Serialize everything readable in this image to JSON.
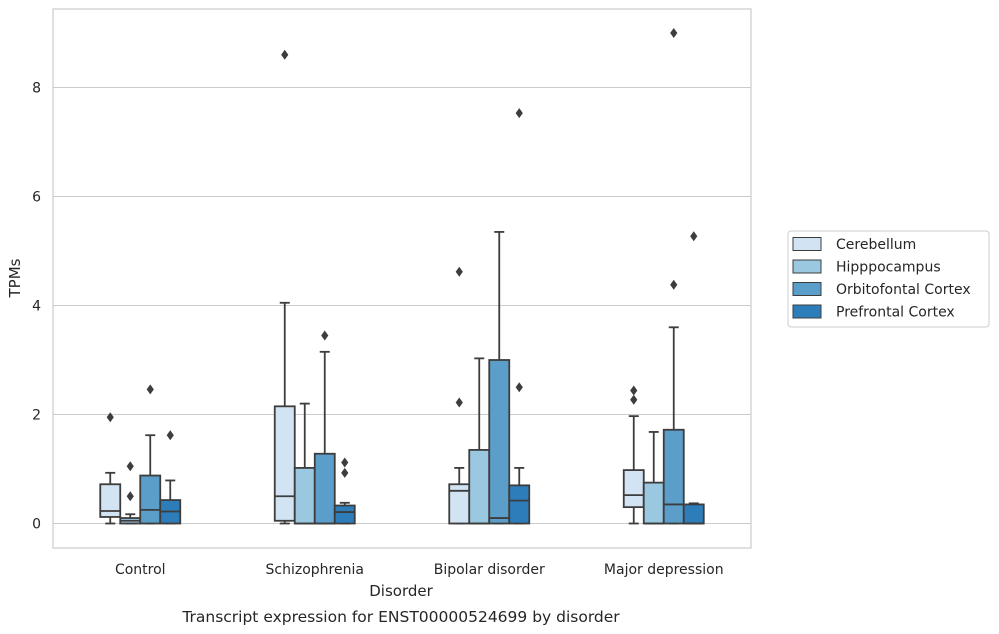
{
  "caption": "Transcript expression for ENST00000524699 by disorder",
  "chart_data": {
    "type": "box",
    "xlabel": "Disorder",
    "ylabel": "TPMs",
    "ylim": [
      -0.45,
      9.55
    ],
    "yticks": [
      0,
      2,
      4,
      6,
      8
    ],
    "grid": "horizontal",
    "legend_position": "right",
    "categories": [
      "Control",
      "Schizophrenia",
      "Bipolar disorder",
      "Major depression"
    ],
    "series": [
      {
        "name": "Cerebellum",
        "color": "#d2e3f3",
        "boxes": [
          {
            "whisker_low": 0.0,
            "q1": 0.12,
            "median": 0.23,
            "q3": 0.72,
            "whisker_high": 0.93,
            "outliers": [
              1.95
            ]
          },
          {
            "whisker_low": 0.0,
            "q1": 0.05,
            "median": 0.5,
            "q3": 2.15,
            "whisker_high": 4.05,
            "outliers": [
              8.6
            ]
          },
          {
            "whisker_low": 0.0,
            "q1": 0.0,
            "median": 0.6,
            "q3": 0.72,
            "whisker_high": 1.02,
            "outliers": [
              2.22,
              4.62
            ]
          },
          {
            "whisker_low": 0.0,
            "q1": 0.3,
            "median": 0.52,
            "q3": 0.98,
            "whisker_high": 1.97,
            "outliers": [
              2.27,
              2.44
            ]
          }
        ]
      },
      {
        "name": "Hipppocampus",
        "color": "#9ac8e0",
        "boxes": [
          {
            "whisker_low": 0.0,
            "q1": 0.0,
            "median": 0.05,
            "q3": 0.1,
            "whisker_high": 0.17,
            "outliers": [
              0.5,
              1.05
            ]
          },
          {
            "whisker_low": 0.0,
            "q1": 0.0,
            "median": 0.0,
            "q3": 1.02,
            "whisker_high": 2.2,
            "outliers": []
          },
          {
            "whisker_low": 0.0,
            "q1": 0.0,
            "median": 0.0,
            "q3": 1.35,
            "whisker_high": 3.03,
            "outliers": []
          },
          {
            "whisker_low": 0.0,
            "q1": 0.0,
            "median": 0.0,
            "q3": 0.75,
            "whisker_high": 1.68,
            "outliers": []
          }
        ]
      },
      {
        "name": "Orbitofontal Cortex",
        "color": "#5a9ec9",
        "boxes": [
          {
            "whisker_low": 0.0,
            "q1": 0.0,
            "median": 0.25,
            "q3": 0.88,
            "whisker_high": 1.62,
            "outliers": [
              2.46
            ]
          },
          {
            "whisker_low": 0.0,
            "q1": 0.0,
            "median": 0.0,
            "q3": 1.28,
            "whisker_high": 3.15,
            "outliers": [
              3.45
            ]
          },
          {
            "whisker_low": 0.0,
            "q1": 0.0,
            "median": 0.1,
            "q3": 3.0,
            "whisker_high": 5.35,
            "outliers": []
          },
          {
            "whisker_low": 0.0,
            "q1": 0.0,
            "median": 0.35,
            "q3": 1.72,
            "whisker_high": 3.6,
            "outliers": [
              4.38,
              9.0
            ]
          }
        ]
      },
      {
        "name": "Prefrontal Cortex",
        "color": "#2d7dbb",
        "boxes": [
          {
            "whisker_low": 0.0,
            "q1": 0.0,
            "median": 0.22,
            "q3": 0.43,
            "whisker_high": 0.79,
            "outliers": [
              1.62
            ]
          },
          {
            "whisker_low": 0.0,
            "q1": 0.0,
            "median": 0.21,
            "q3": 0.33,
            "whisker_high": 0.38,
            "outliers": [
              0.93,
              1.12
            ]
          },
          {
            "whisker_low": 0.0,
            "q1": 0.0,
            "median": 0.42,
            "q3": 0.7,
            "whisker_high": 1.02,
            "outliers": [
              2.5,
              7.53
            ]
          },
          {
            "whisker_low": 0.0,
            "q1": 0.0,
            "median": 0.0,
            "q3": 0.35,
            "whisker_high": 0.37,
            "outliers": [
              5.27
            ]
          }
        ]
      }
    ]
  }
}
